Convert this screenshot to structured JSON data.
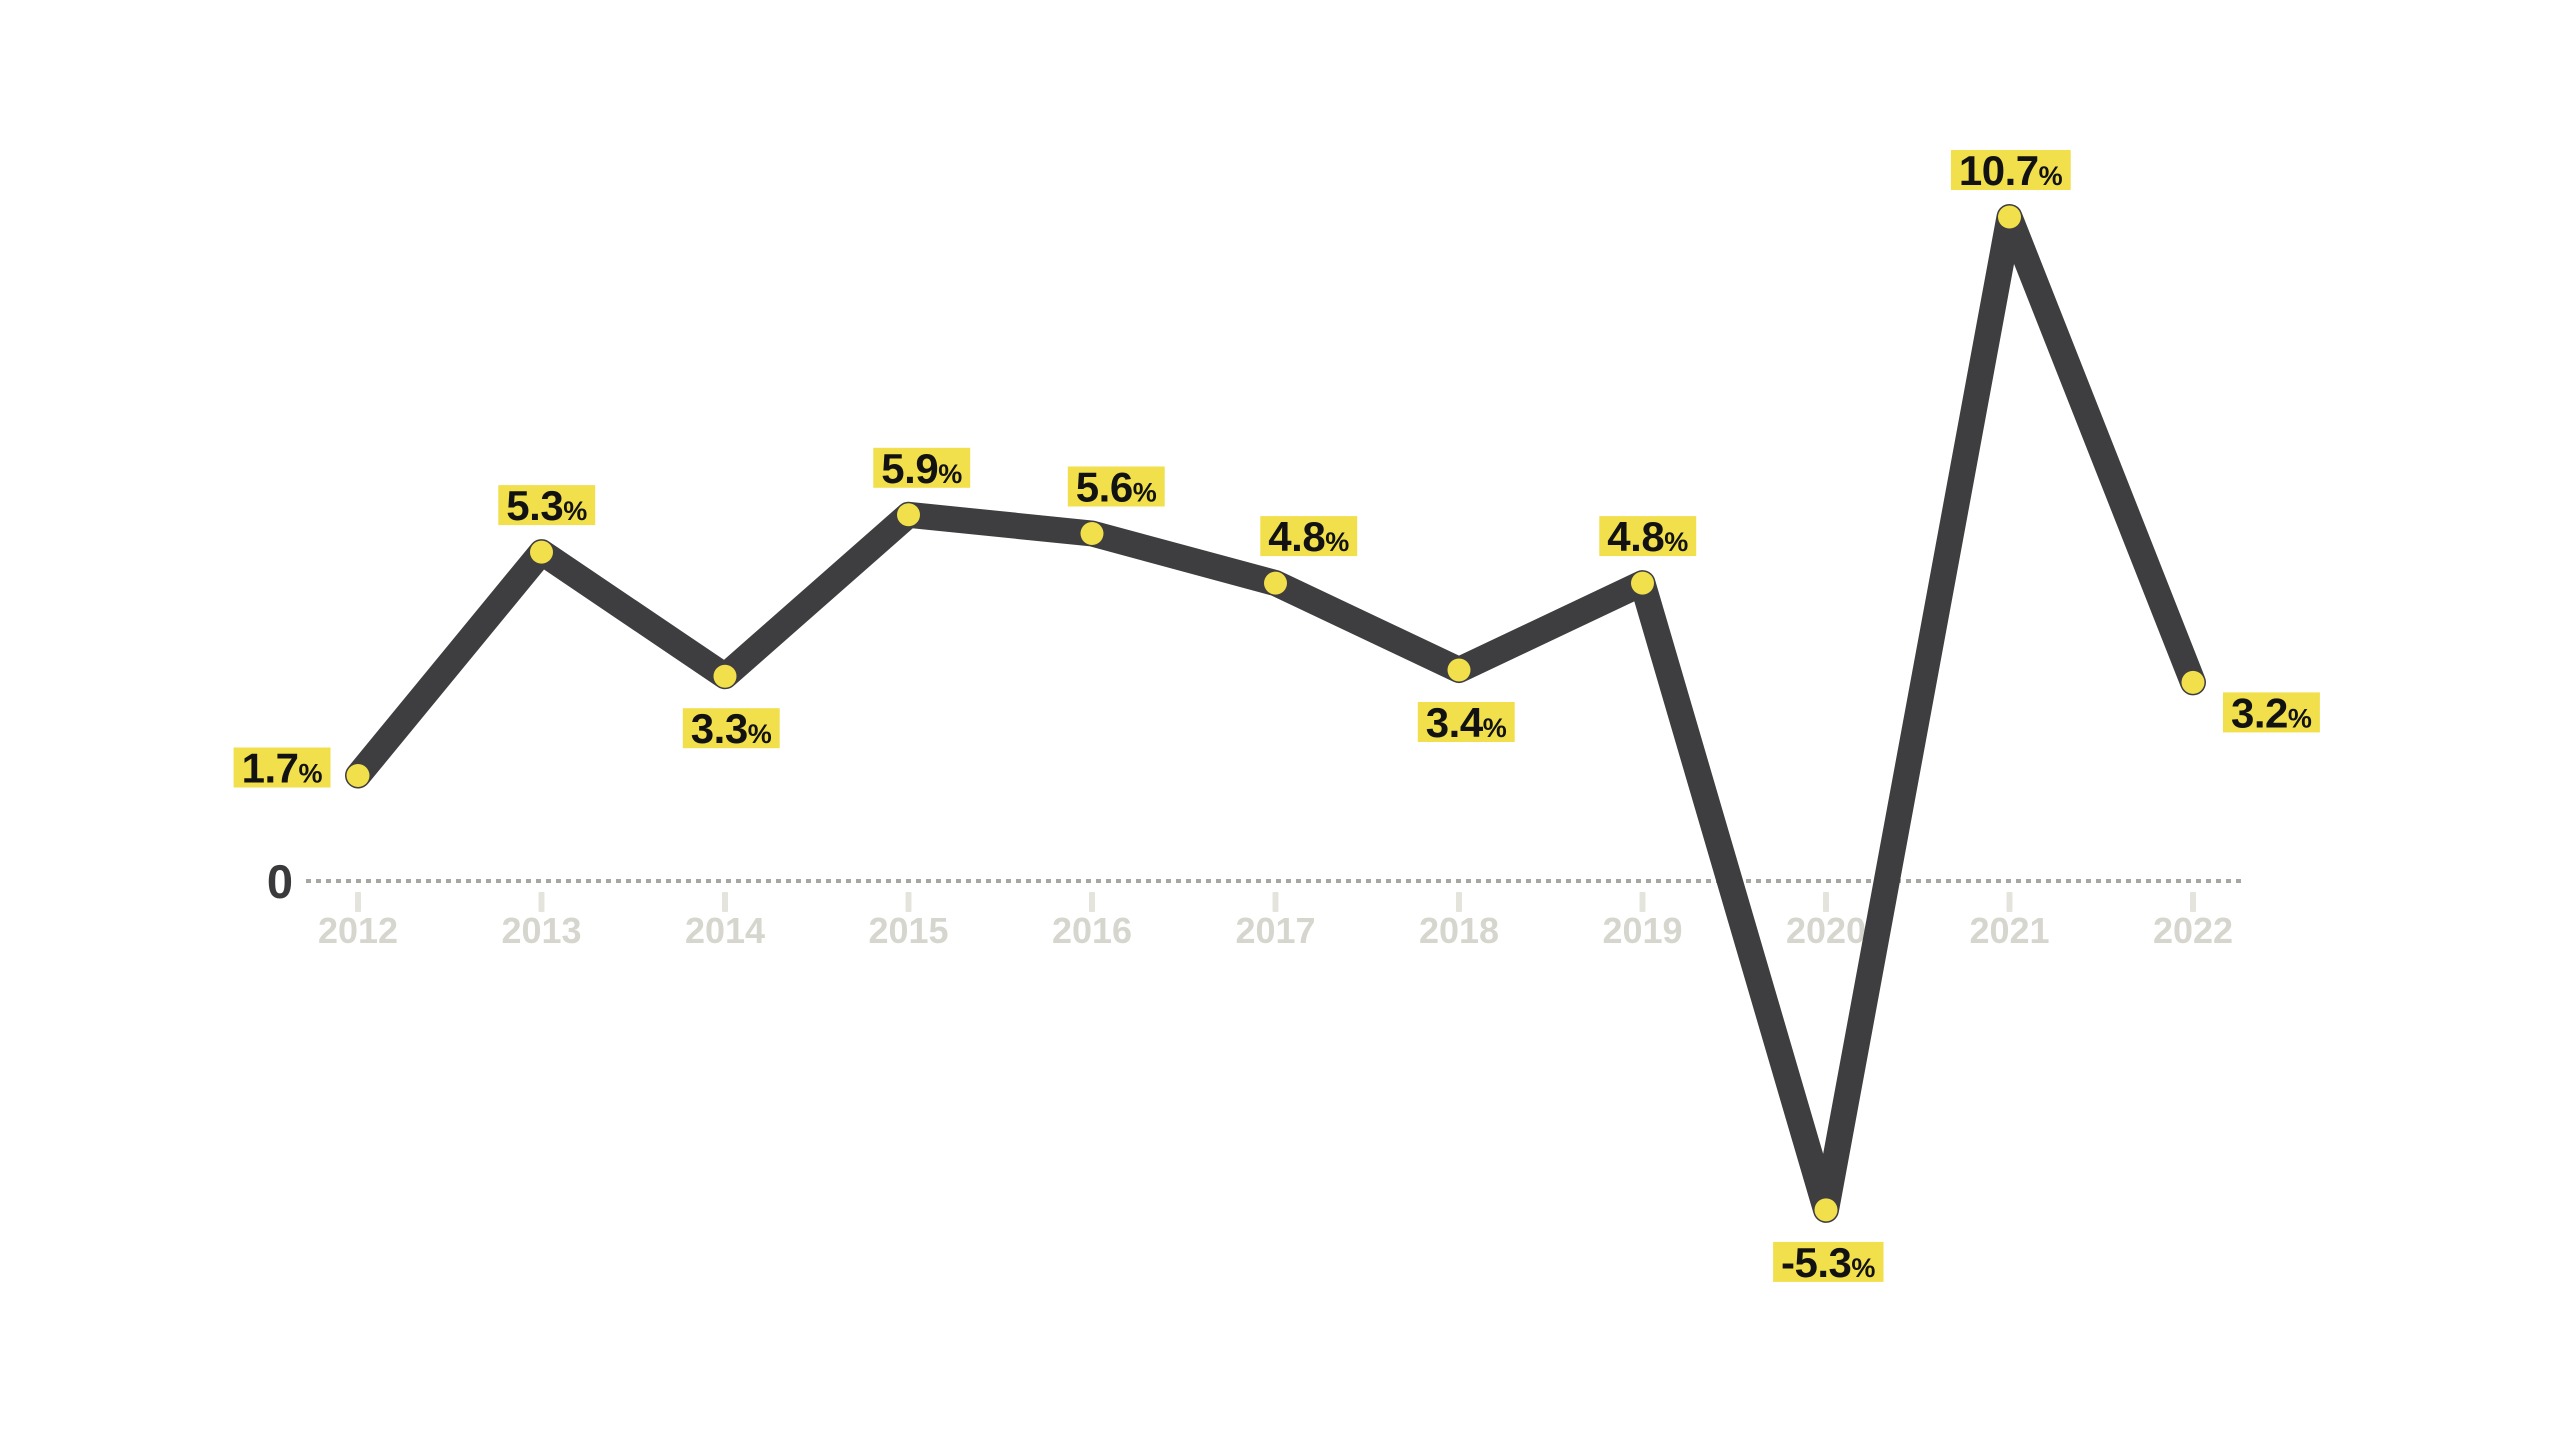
{
  "chart_data": {
    "type": "line",
    "title": "",
    "xlabel": "",
    "ylabel": "",
    "unit_suffix": "%",
    "categories": [
      "2012",
      "2013",
      "2014",
      "2015",
      "2016",
      "2017",
      "2018",
      "2019",
      "2020",
      "2021",
      "2022"
    ],
    "values": [
      1.7,
      5.3,
      3.3,
      5.9,
      5.6,
      4.8,
      3.4,
      4.8,
      -5.3,
      10.7,
      3.2
    ],
    "point_labels": [
      "1.7%",
      "5.3%",
      "3.3%",
      "5.9%",
      "5.6%",
      "4.8%",
      "3.4%",
      "4.8%",
      "-5.3%",
      "10.7%",
      "3.2%"
    ],
    "label_positions": [
      "left",
      "above",
      "below",
      "above",
      "above",
      "above",
      "below",
      "above",
      "below",
      "above",
      "right"
    ],
    "label_dx": [
      0,
      5,
      6,
      13,
      24,
      33,
      7,
      5,
      2,
      1,
      0
    ],
    "zero_label": "0",
    "ylim": [
      -7,
      12
    ],
    "grid": "dotted zero baseline only",
    "legend": "none",
    "colors": {
      "line": "#3E3D3F",
      "marker": "#F1DF4B",
      "label_background": "#F1DF4B",
      "label_text": "#121212",
      "axis_dotted": "#A7A7A1",
      "tick": "#E4E4DC",
      "year_text": "#D6D6CE",
      "zero_text": "#3A3A3C",
      "background": "#FFFFFF"
    }
  }
}
